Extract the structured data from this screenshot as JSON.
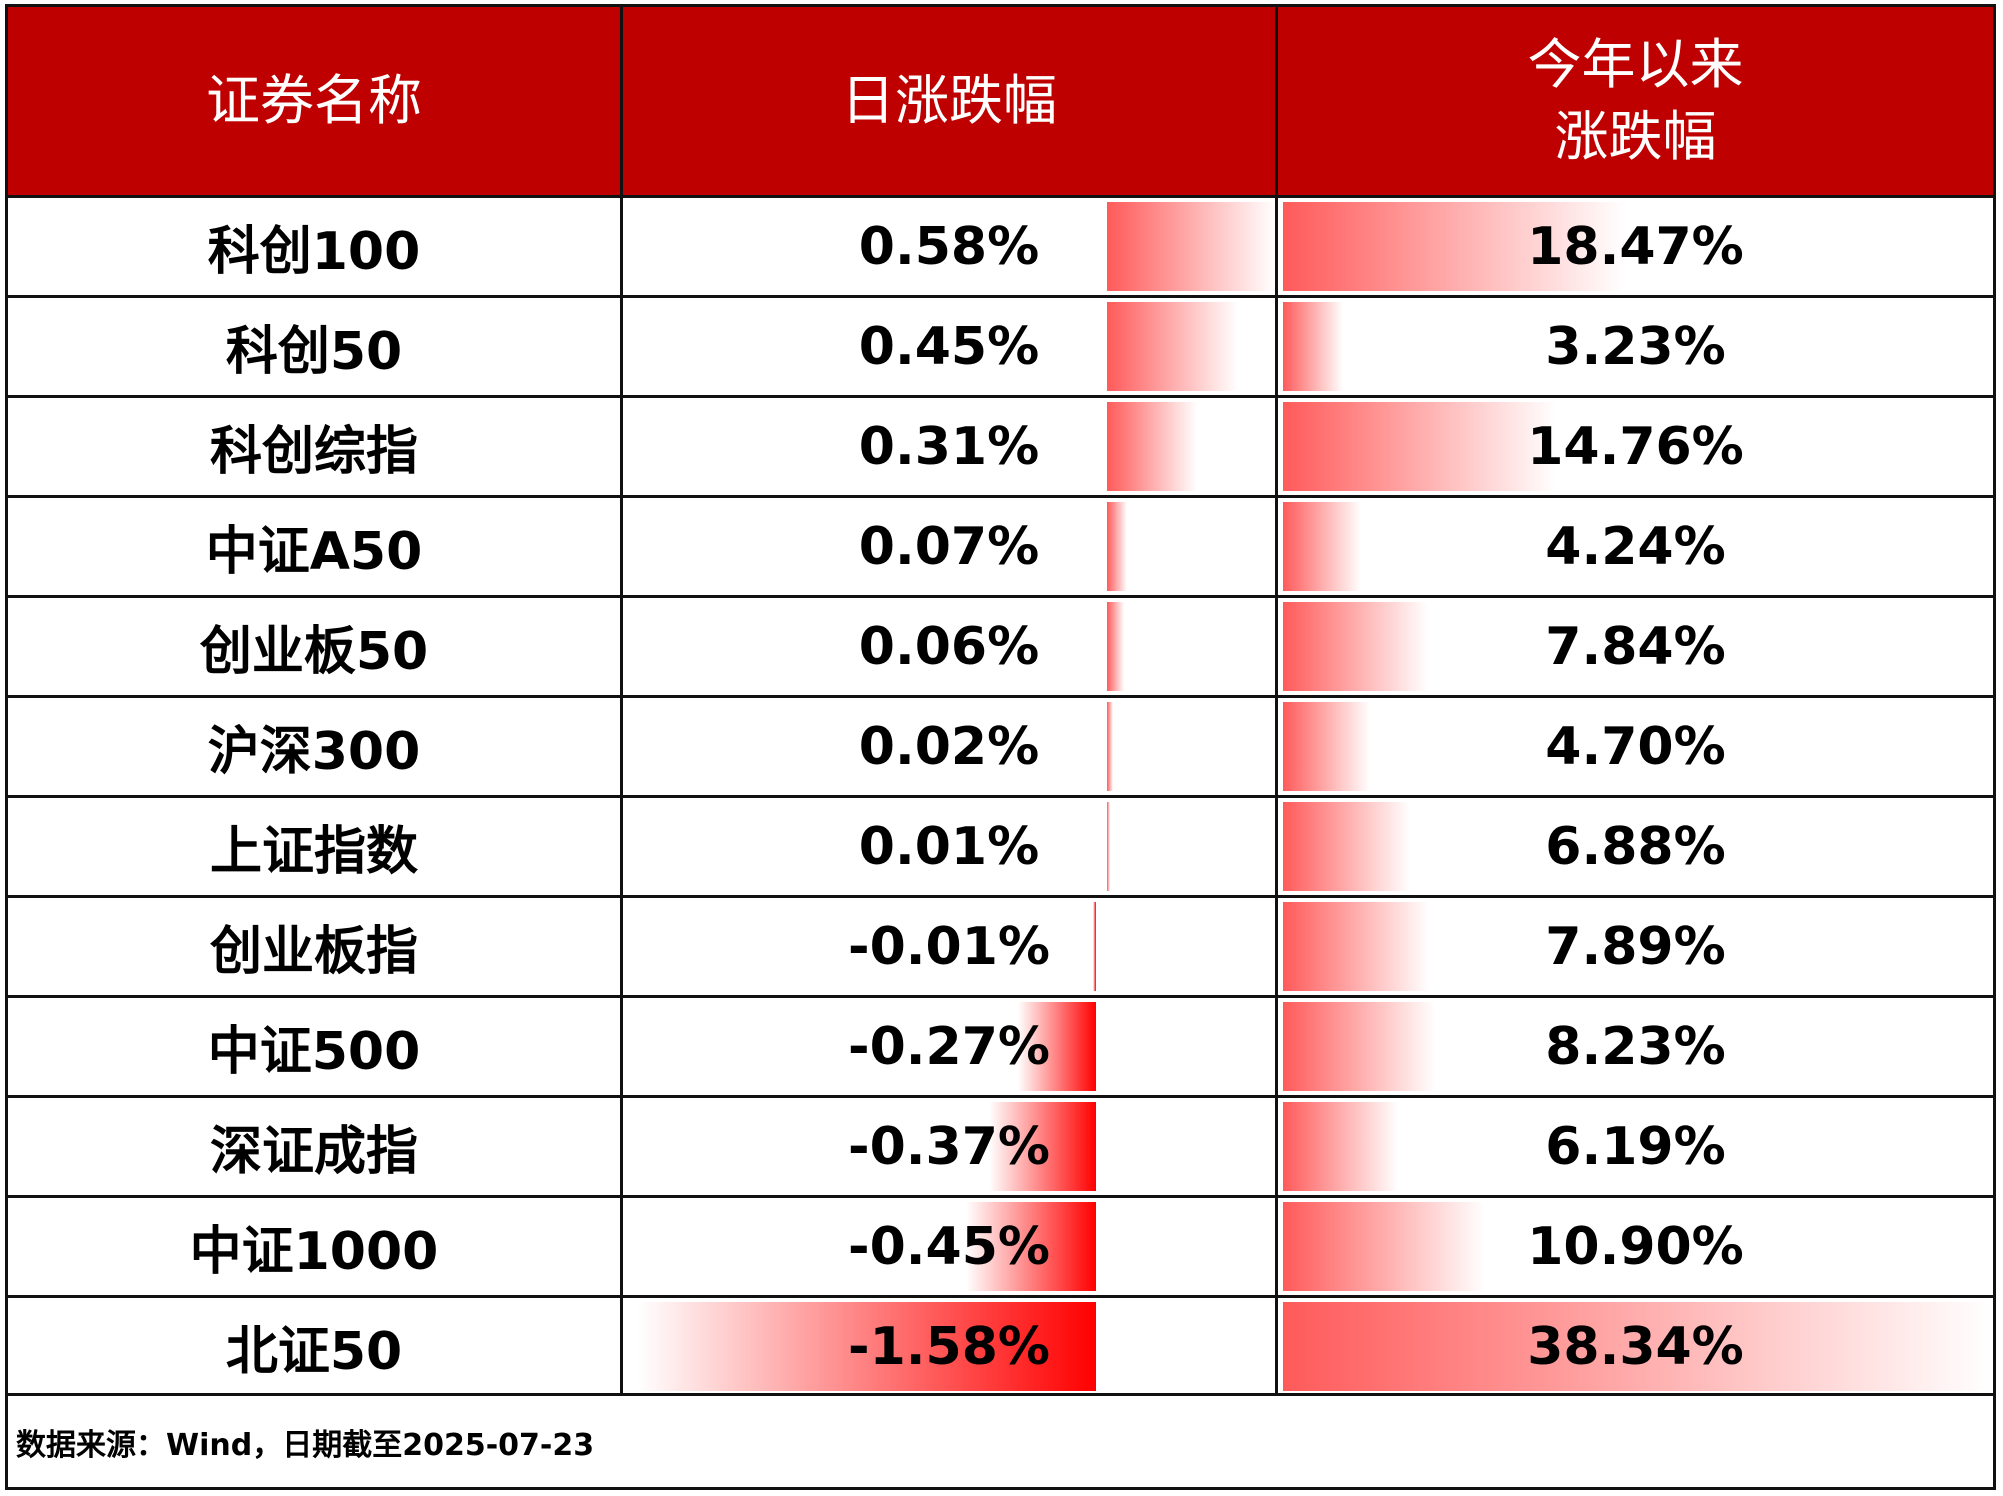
{
  "chart_data": {
    "type": "table",
    "columns": [
      "证券名称",
      "日涨跌幅",
      "今年以来\n涨跌幅"
    ],
    "rows": [
      {
        "name": "科创100",
        "daily": 0.58,
        "ytd": 18.47,
        "daily_label": "0.58%",
        "ytd_label": "18.47%"
      },
      {
        "name": "科创50",
        "daily": 0.45,
        "ytd": 3.23,
        "daily_label": "0.45%",
        "ytd_label": "3.23%"
      },
      {
        "name": "科创综指",
        "daily": 0.31,
        "ytd": 14.76,
        "daily_label": "0.31%",
        "ytd_label": "14.76%"
      },
      {
        "name": "中证A50",
        "daily": 0.07,
        "ytd": 4.24,
        "daily_label": "0.07%",
        "ytd_label": "4.24%"
      },
      {
        "name": "创业板50",
        "daily": 0.06,
        "ytd": 7.84,
        "daily_label": "0.06%",
        "ytd_label": "7.84%"
      },
      {
        "name": "沪深300",
        "daily": 0.02,
        "ytd": 4.7,
        "daily_label": "0.02%",
        "ytd_label": "4.70%"
      },
      {
        "name": "上证指数",
        "daily": 0.01,
        "ytd": 6.88,
        "daily_label": "0.01%",
        "ytd_label": "6.88%"
      },
      {
        "name": "创业板指",
        "daily": -0.01,
        "ytd": 7.89,
        "daily_label": "-0.01%",
        "ytd_label": "7.89%"
      },
      {
        "name": "中证500",
        "daily": -0.27,
        "ytd": 8.23,
        "daily_label": "-0.27%",
        "ytd_label": "8.23%"
      },
      {
        "name": "深证成指",
        "daily": -0.37,
        "ytd": 6.19,
        "daily_label": "-0.37%",
        "ytd_label": "6.19%"
      },
      {
        "name": "中证1000",
        "daily": -0.45,
        "ytd": 10.9,
        "daily_label": "-0.45%",
        "ytd_label": "10.90%"
      },
      {
        "name": "北证50",
        "daily": -1.58,
        "ytd": 38.34,
        "daily_label": "-1.58%",
        "ytd_label": "38.34%"
      }
    ],
    "colors": {
      "header": "#bf0000",
      "positive_bar": "#ff5a5a",
      "negative_bar": "#ff0000"
    }
  },
  "header": {
    "col1": "证券名称",
    "col2": "日涨跌幅",
    "col3_line1": "今年以来",
    "col3_line2": "涨跌幅"
  },
  "footer": {
    "source": "数据来源：Wind，日期截至2025-07-23"
  }
}
